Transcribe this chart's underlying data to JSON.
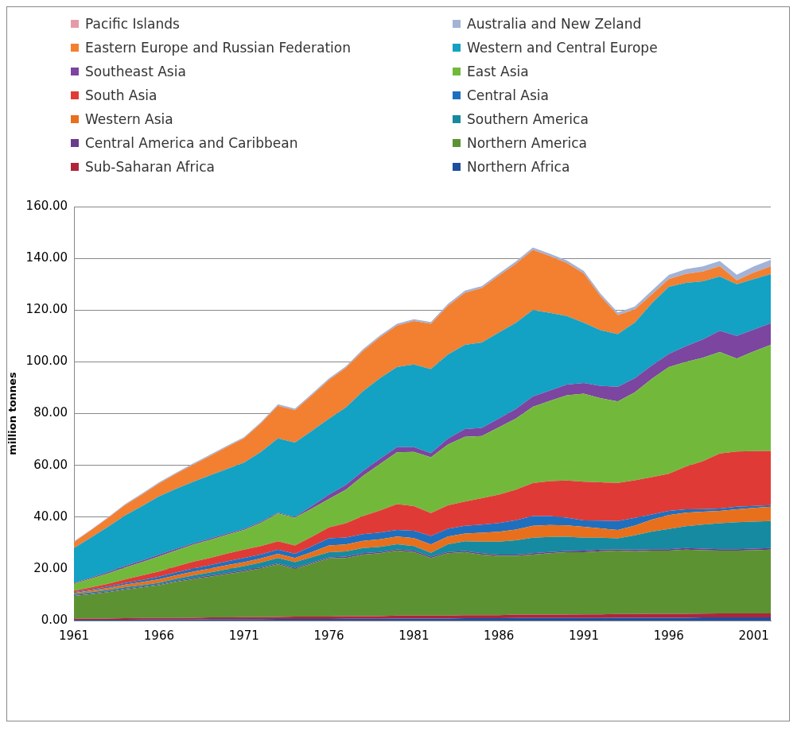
{
  "chart_data": {
    "type": "area",
    "stacked": true,
    "ylabel": "million tonnes",
    "legend": "top",
    "grid": "y",
    "marker": "none",
    "x": [
      1961,
      1962,
      1963,
      1964,
      1965,
      1966,
      1967,
      1968,
      1969,
      1970,
      1971,
      1972,
      1973,
      1974,
      1975,
      1976,
      1977,
      1978,
      1979,
      1980,
      1981,
      1982,
      1983,
      1984,
      1985,
      1986,
      1987,
      1988,
      1989,
      1990,
      1991,
      1992,
      1993,
      1994,
      1995,
      1996,
      1997,
      1998,
      1999,
      2000,
      2001,
      2002
    ],
    "xlim": [
      1961,
      2002
    ],
    "xticks": [
      1961,
      1966,
      1971,
      1976,
      1981,
      1986,
      1991,
      1996,
      2001
    ],
    "ylim": [
      0,
      160
    ],
    "yticks": [
      {
        "value": 0,
        "label": "0.00"
      },
      {
        "value": 20,
        "label": "20.00"
      },
      {
        "value": 40,
        "label": "40.00"
      },
      {
        "value": 60,
        "label": "60.00"
      },
      {
        "value": 80,
        "label": "80.00"
      },
      {
        "value": 100,
        "label": "100.00"
      },
      {
        "value": 120,
        "label": "120.00"
      },
      {
        "value": 140,
        "label": "140.00"
      },
      {
        "value": 160,
        "label": "160.00"
      }
    ],
    "series": [
      {
        "name": "Northern Africa",
        "color": "#1e4f9e",
        "values": [
          0.3,
          0.3,
          0.3,
          0.3,
          0.4,
          0.4,
          0.4,
          0.4,
          0.5,
          0.5,
          0.5,
          0.5,
          0.6,
          0.6,
          0.6,
          0.6,
          0.7,
          0.7,
          0.7,
          0.8,
          0.8,
          0.8,
          0.8,
          0.9,
          0.9,
          0.9,
          1.0,
          1.0,
          1.0,
          1.0,
          1.0,
          1.0,
          1.1,
          1.1,
          1.1,
          1.1,
          1.1,
          1.2,
          1.2,
          1.2,
          1.2,
          1.2
        ]
      },
      {
        "name": "Sub-Saharan Africa",
        "color": "#b0243c",
        "values": [
          0.5,
          0.5,
          0.5,
          0.6,
          0.6,
          0.6,
          0.6,
          0.7,
          0.7,
          0.7,
          0.8,
          0.8,
          0.8,
          0.9,
          0.9,
          0.9,
          1.0,
          1.0,
          1.0,
          1.1,
          1.1,
          1.1,
          1.1,
          1.2,
          1.2,
          1.2,
          1.3,
          1.3,
          1.3,
          1.3,
          1.4,
          1.4,
          1.4,
          1.4,
          1.5,
          1.5,
          1.5,
          1.5,
          1.6,
          1.6,
          1.6,
          1.6
        ]
      },
      {
        "name": "Northern America",
        "color": "#5d9232",
        "values": [
          8.7,
          9.4,
          10.2,
          11.1,
          11.8,
          12.7,
          14.0,
          14.9,
          15.8,
          16.8,
          17.7,
          18.9,
          20.3,
          18.5,
          20.5,
          22.5,
          22.5,
          23.8,
          24.3,
          25.1,
          24.6,
          22.3,
          24.1,
          24.3,
          23.4,
          22.9,
          22.7,
          23.2,
          23.7,
          24.1,
          24.0,
          24.4,
          24.5,
          24.3,
          24.4,
          24.4,
          24.8,
          24.5,
          24.2,
          24.2,
          24.4,
          24.6
        ]
      },
      {
        "name": "Central America and Caribbean",
        "color": "#6b3b8e",
        "values": [
          0.3,
          0.3,
          0.3,
          0.3,
          0.3,
          0.3,
          0.3,
          0.4,
          0.4,
          0.4,
          0.4,
          0.4,
          0.4,
          0.4,
          0.4,
          0.4,
          0.5,
          0.5,
          0.5,
          0.5,
          0.5,
          0.5,
          0.5,
          0.5,
          0.5,
          0.5,
          0.5,
          0.5,
          0.5,
          0.5,
          0.6,
          0.6,
          0.5,
          0.6,
          0.6,
          0.6,
          0.6,
          0.6,
          0.6,
          0.6,
          0.6,
          0.6
        ]
      },
      {
        "name": "Southern America",
        "color": "#168aa0",
        "values": [
          0.5,
          0.5,
          0.5,
          0.6,
          0.6,
          0.6,
          0.8,
          1.0,
          1.2,
          1.4,
          1.6,
          1.8,
          2.1,
          2.2,
          2.1,
          2.0,
          2.0,
          2.0,
          2.0,
          2.0,
          1.8,
          1.5,
          3.0,
          3.7,
          4.5,
          5.0,
          5.5,
          6.0,
          5.8,
          5.5,
          5.0,
          4.6,
          4.3,
          5.5,
          6.8,
          7.8,
          8.5,
          9.3,
          10.0,
          10.4,
          10.4,
          10.5
        ]
      },
      {
        "name": "Western Asia",
        "color": "#e8701c",
        "values": [
          0.4,
          0.6,
          0.8,
          1.0,
          1.2,
          1.4,
          1.4,
          1.5,
          1.5,
          1.6,
          1.6,
          1.6,
          1.6,
          1.6,
          2.0,
          2.6,
          2.7,
          2.8,
          2.9,
          3.0,
          3.1,
          3.2,
          3.0,
          3.0,
          3.4,
          3.8,
          4.2,
          4.6,
          4.6,
          4.4,
          4.2,
          3.6,
          3.2,
          3.8,
          4.6,
          5.4,
          5.2,
          5.0,
          4.8,
          5.0,
          5.3,
          5.5
        ]
      },
      {
        "name": "Central Asia",
        "color": "#1f6fbf",
        "values": [
          0.3,
          0.4,
          0.5,
          0.6,
          0.8,
          1.0,
          1.1,
          1.2,
          1.3,
          1.5,
          1.6,
          1.6,
          1.6,
          1.6,
          2.2,
          2.8,
          2.7,
          2.6,
          2.6,
          2.5,
          2.8,
          3.3,
          3.0,
          3.0,
          3.2,
          3.4,
          3.6,
          3.8,
          3.5,
          3.0,
          2.5,
          3.0,
          3.5,
          3.0,
          2.0,
          1.6,
          1.3,
          1.0,
          0.9,
          1.0,
          0.8,
          0.6
        ]
      },
      {
        "name": "South Asia",
        "color": "#e03a36",
        "values": [
          0.5,
          0.8,
          1.1,
          1.4,
          1.7,
          2.0,
          2.3,
          2.6,
          2.8,
          3.0,
          3.2,
          3.2,
          3.2,
          3.2,
          3.7,
          4.2,
          5.5,
          7.0,
          8.5,
          10.0,
          9.5,
          8.8,
          9.0,
          9.4,
          10.2,
          11.0,
          11.8,
          12.7,
          13.5,
          14.3,
          15.0,
          14.8,
          14.7,
          14.5,
          14.4,
          14.3,
          16.5,
          18.5,
          21.3,
          21.3,
          21.2,
          21.0
        ]
      },
      {
        "name": "East Asia",
        "color": "#72b93b",
        "values": [
          2.8,
          3.4,
          4.0,
          4.6,
          5.2,
          5.8,
          6.2,
          6.6,
          7.0,
          7.3,
          7.6,
          9.0,
          10.8,
          10.8,
          10.9,
          11.0,
          13.0,
          15.5,
          18.0,
          20.0,
          21.0,
          21.6,
          23.5,
          25.0,
          24.0,
          26.0,
          27.5,
          29.5,
          31.0,
          33.0,
          34.0,
          32.5,
          31.5,
          34.0,
          38.0,
          41.3,
          40.5,
          40.0,
          39.2,
          36.0,
          38.5,
          41.0
        ]
      },
      {
        "name": "Southeast Asia",
        "color": "#7b45a0",
        "values": [
          0.3,
          0.4,
          0.5,
          0.6,
          0.6,
          0.7,
          0.6,
          0.5,
          0.5,
          0.4,
          0.4,
          0.4,
          0.3,
          0.3,
          1.0,
          1.7,
          1.8,
          1.9,
          2.0,
          2.0,
          1.8,
          1.6,
          2.3,
          3.0,
          3.2,
          3.4,
          3.7,
          4.0,
          4.0,
          4.1,
          4.1,
          4.8,
          5.7,
          5.5,
          5.2,
          5.0,
          6.0,
          7.0,
          8.2,
          8.7,
          8.5,
          8.3
        ]
      },
      {
        "name": "Western and Central Europe",
        "color": "#13a1c4",
        "values": [
          13.4,
          15.5,
          17.5,
          19.5,
          21.0,
          22.5,
          23.2,
          23.8,
          24.4,
          25.0,
          25.6,
          27.0,
          28.7,
          28.7,
          29.0,
          29.3,
          30.0,
          30.8,
          31.2,
          31.0,
          32.0,
          32.5,
          32.5,
          32.6,
          33.0,
          33.2,
          33.3,
          33.4,
          30.0,
          26.5,
          23.3,
          21.5,
          20.3,
          21.5,
          24.0,
          26.0,
          24.5,
          22.5,
          21.0,
          20.0,
          19.5,
          19.0
        ]
      },
      {
        "name": "Eastern Europe and Russian Federation",
        "color": "#f37f30",
        "values": [
          2.3,
          2.8,
          3.4,
          4.0,
          4.5,
          5.0,
          5.8,
          6.6,
          7.5,
          8.5,
          9.4,
          11.0,
          12.6,
          12.5,
          13.8,
          15.0,
          15.3,
          15.6,
          15.8,
          16.0,
          16.8,
          17.5,
          18.8,
          20.1,
          21.0,
          22.0,
          22.8,
          23.3,
          22.0,
          20.5,
          19.0,
          13.0,
          7.4,
          5.0,
          3.5,
          3.0,
          3.5,
          3.8,
          4.0,
          1.5,
          2.5,
          3.0
        ]
      },
      {
        "name": "Australia and New Zeland",
        "color": "#a3b3d6",
        "values": [
          0.3,
          0.3,
          0.3,
          0.4,
          0.4,
          0.4,
          0.4,
          0.5,
          0.5,
          0.5,
          0.5,
          0.5,
          0.6,
          0.6,
          0.6,
          0.6,
          0.6,
          0.7,
          0.7,
          0.7,
          0.7,
          0.7,
          0.8,
          0.8,
          0.8,
          0.8,
          0.9,
          0.9,
          0.9,
          1.0,
          1.0,
          1.0,
          1.0,
          1.2,
          1.4,
          1.6,
          1.8,
          2.0,
          2.0,
          2.2,
          2.4,
          2.5
        ]
      },
      {
        "name": "Pacific Islands",
        "color": "#e69aa8",
        "values": [
          null,
          null,
          null,
          null,
          null,
          null,
          null,
          null,
          null,
          null,
          null,
          null,
          null,
          null,
          null,
          null,
          null,
          null,
          null,
          null,
          null,
          null,
          null,
          null,
          null,
          null,
          null,
          null,
          null,
          null,
          null,
          null,
          null,
          null,
          null,
          null,
          null,
          null,
          null,
          null,
          null,
          null
        ]
      }
    ]
  }
}
